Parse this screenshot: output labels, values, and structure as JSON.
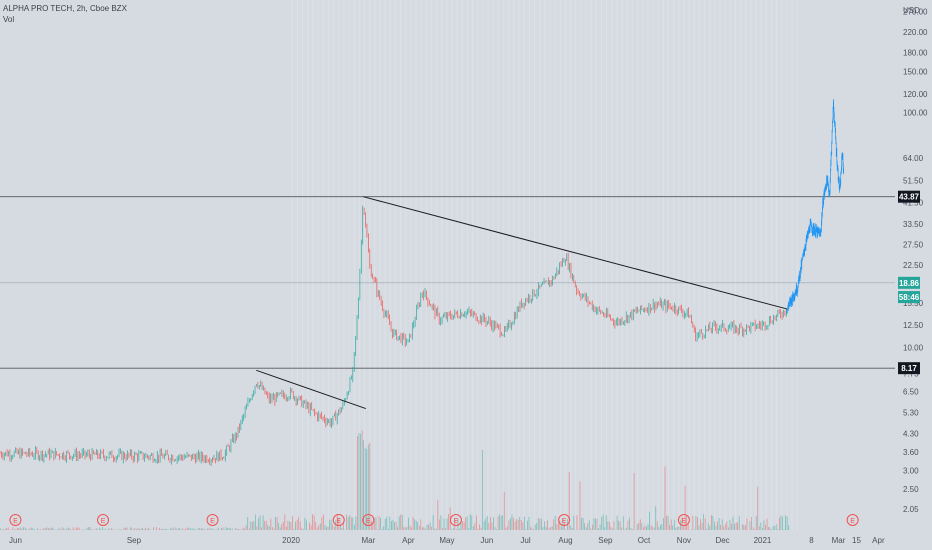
{
  "header": {
    "title": "ALPHA PRO TECH, 2h, Cboe BZX",
    "indicator": "Vol"
  },
  "colors": {
    "background": "#d6dbe2",
    "up": "#26a69a",
    "down": "#ef5350",
    "projection": "#2196f3",
    "trendline": "#1c1c1c",
    "hline": "#555555",
    "earnings": "#ef5350",
    "current_price_tag": "#26a69a"
  },
  "chart_data": {
    "type": "candlestick",
    "y_scale": "log",
    "currency": "USD",
    "ylim": [
      1.9,
      290
    ],
    "y_ticks": [
      "2.05",
      "2.50",
      "3.00",
      "3.60",
      "4.30",
      "5.30",
      "6.50",
      "7.75",
      "10.00",
      "12.50",
      "15.50",
      "22.50",
      "27.50",
      "33.50",
      "41.50",
      "51.50",
      "64.00",
      "100.00",
      "120.00",
      "150.00",
      "180.00",
      "220.00",
      "270.00"
    ],
    "x_ticks": [
      "Jun",
      "Sep",
      "2020",
      "Mar",
      "Apr",
      "May",
      "Jun",
      "Jul",
      "Aug",
      "Sep",
      "Oct",
      "Nov",
      "Dec",
      "2021",
      "8",
      "Mar",
      "15",
      "Apr"
    ],
    "price_labels": [
      {
        "value": 43.87,
        "label": "43.87",
        "style": "dark"
      },
      {
        "value": 18.86,
        "label": "18.86",
        "style": "green"
      },
      {
        "value": 16.4,
        "label": "58:46",
        "style": "green"
      },
      {
        "value": 8.17,
        "label": "8.17",
        "style": "dark"
      }
    ],
    "horizontal_lines": [
      43.87,
      8.17,
      18.86
    ],
    "trendlines": [
      {
        "from": [
          "2019-12-05",
          8.0
        ],
        "to": [
          "2020-02-28",
          5.5
        ]
      },
      {
        "from": [
          "2020-02-26",
          43.87
        ],
        "to": [
          "2021-01-20",
          14.6
        ]
      }
    ],
    "price_path": [
      [
        "2019-05-20",
        3.55
      ],
      [
        "2019-07-15",
        3.5
      ],
      [
        "2019-09-10",
        3.45
      ],
      [
        "2019-11-01",
        3.4
      ],
      [
        "2019-11-10",
        3.5
      ],
      [
        "2019-11-20",
        4.3
      ],
      [
        "2019-12-05",
        7.2
      ],
      [
        "2019-12-15",
        6.0
      ],
      [
        "2020-01-01",
        6.4
      ],
      [
        "2020-01-20",
        5.2
      ],
      [
        "2020-02-01",
        4.8
      ],
      [
        "2020-02-10",
        5.6
      ],
      [
        "2020-02-18",
        7.8
      ],
      [
        "2020-02-22",
        15.0
      ],
      [
        "2020-02-26",
        43.0
      ],
      [
        "2020-03-02",
        22.0
      ],
      [
        "2020-03-10",
        16.0
      ],
      [
        "2020-03-20",
        11.5
      ],
      [
        "2020-04-01",
        10.5
      ],
      [
        "2020-04-12",
        17.5
      ],
      [
        "2020-04-25",
        13.2
      ],
      [
        "2020-05-15",
        14.2
      ],
      [
        "2020-06-01",
        13.0
      ],
      [
        "2020-06-15",
        11.5
      ],
      [
        "2020-06-28",
        15.5
      ],
      [
        "2020-07-10",
        17.5
      ],
      [
        "2020-07-22",
        19.5
      ],
      [
        "2020-08-01",
        24.5
      ],
      [
        "2020-08-10",
        17.5
      ],
      [
        "2020-08-25",
        14.5
      ],
      [
        "2020-09-10",
        12.8
      ],
      [
        "2020-09-25",
        14.2
      ],
      [
        "2020-10-10",
        15.3
      ],
      [
        "2020-10-25",
        14.8
      ],
      [
        "2020-11-05",
        13.8
      ],
      [
        "2020-11-10",
        11.2
      ],
      [
        "2020-11-25",
        12.3
      ],
      [
        "2020-12-15",
        12.0
      ],
      [
        "2021-01-01",
        12.5
      ],
      [
        "2021-01-12",
        13.6
      ],
      [
        "2021-01-20",
        14.6
      ]
    ],
    "projection_path": [
      [
        "2021-01-20",
        14.6
      ],
      [
        "2021-01-28",
        18.0
      ],
      [
        "2021-02-03",
        27.0
      ],
      [
        "2021-02-07",
        33.0
      ],
      [
        "2021-02-12",
        31.0
      ],
      [
        "2021-02-15",
        30.5
      ],
      [
        "2021-02-17",
        42.0
      ],
      [
        "2021-02-20",
        52.0
      ],
      [
        "2021-02-22",
        45.0
      ],
      [
        "2021-02-25",
        110.0
      ],
      [
        "2021-02-28",
        60.0
      ],
      [
        "2021-03-02",
        46.0
      ],
      [
        "2021-03-04",
        68.0
      ],
      [
        "2021-03-05",
        55.0
      ]
    ],
    "earnings_dates": [
      "2019-06-01",
      "2019-08-08",
      "2019-11-01",
      "2020-02-07",
      "2020-03-01",
      "2020-05-08",
      "2020-07-31",
      "2020-11-01",
      "2021-03-12"
    ]
  }
}
